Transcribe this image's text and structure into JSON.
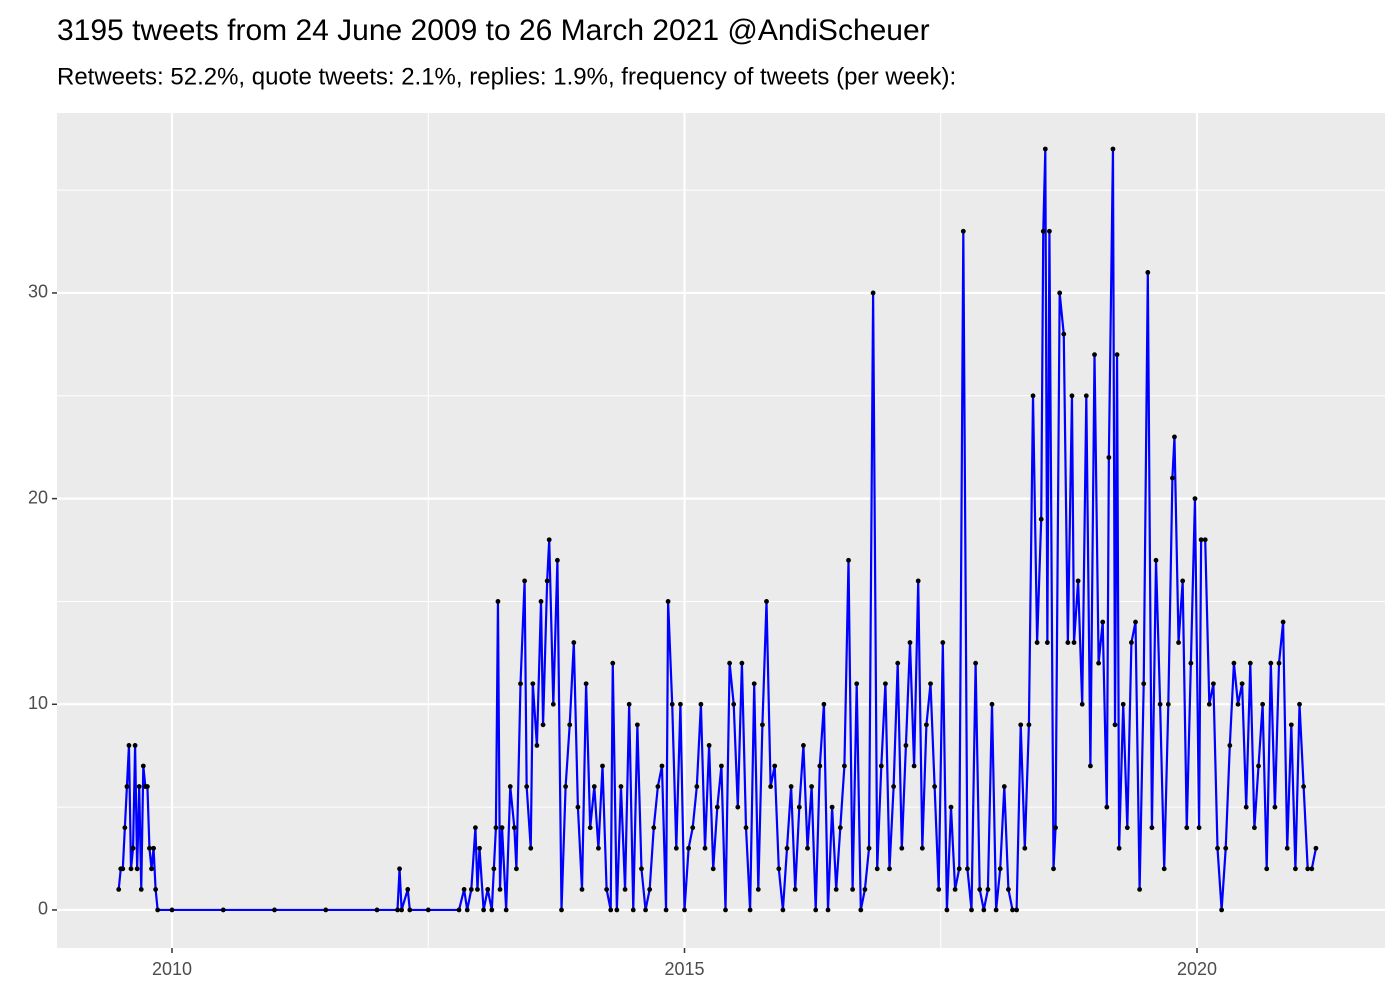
{
  "chart_data": {
    "type": "line",
    "title": "3195 tweets from 24 June 2009 to 26 March 2021 @AndiScheuer",
    "subtitle": "Retweets: 52.2%, quote tweets: 2.1%, replies: 1.9%, frequency of tweets (per week):",
    "x": [
      2009.48,
      2009.5,
      2009.52,
      2009.54,
      2009.56,
      2009.58,
      2009.6,
      2009.62,
      2009.64,
      2009.66,
      2009.68,
      2009.7,
      2009.72,
      2009.74,
      2009.76,
      2009.78,
      2009.8,
      2009.82,
      2009.84,
      2009.86,
      2010.0,
      2010.5,
      2011.0,
      2011.5,
      2012.0,
      2012.2,
      2012.22,
      2012.24,
      2012.3,
      2012.32,
      2012.5,
      2012.8,
      2012.85,
      2012.88,
      2012.92,
      2012.96,
      2012.98,
      2013.0,
      2013.04,
      2013.08,
      2013.12,
      2013.14,
      2013.16,
      2013.18,
      2013.2,
      2013.22,
      2013.26,
      2013.3,
      2013.34,
      2013.36,
      2013.4,
      2013.44,
      2013.46,
      2013.5,
      2013.52,
      2013.56,
      2013.6,
      2013.62,
      2013.66,
      2013.68,
      2013.72,
      2013.76,
      2013.8,
      2013.84,
      2013.88,
      2013.92,
      2013.96,
      2014.0,
      2014.04,
      2014.08,
      2014.12,
      2014.16,
      2014.2,
      2014.24,
      2014.28,
      2014.3,
      2014.34,
      2014.38,
      2014.42,
      2014.46,
      2014.5,
      2014.54,
      2014.58,
      2014.62,
      2014.66,
      2014.7,
      2014.74,
      2014.78,
      2014.82,
      2014.84,
      2014.88,
      2014.92,
      2014.96,
      2015.0,
      2015.04,
      2015.08,
      2015.12,
      2015.16,
      2015.2,
      2015.24,
      2015.28,
      2015.32,
      2015.36,
      2015.4,
      2015.44,
      2015.48,
      2015.52,
      2015.56,
      2015.6,
      2015.64,
      2015.68,
      2015.72,
      2015.76,
      2015.8,
      2015.84,
      2015.88,
      2015.92,
      2015.96,
      2016.0,
      2016.04,
      2016.08,
      2016.12,
      2016.16,
      2016.2,
      2016.24,
      2016.28,
      2016.32,
      2016.36,
      2016.4,
      2016.44,
      2016.48,
      2016.52,
      2016.56,
      2016.6,
      2016.64,
      2016.68,
      2016.72,
      2016.76,
      2016.8,
      2016.84,
      2016.88,
      2016.92,
      2016.96,
      2017.0,
      2017.04,
      2017.08,
      2017.12,
      2017.16,
      2017.2,
      2017.24,
      2017.28,
      2017.32,
      2017.36,
      2017.4,
      2017.44,
      2017.48,
      2017.52,
      2017.56,
      2017.6,
      2017.64,
      2017.68,
      2017.72,
      2017.76,
      2017.8,
      2017.84,
      2017.88,
      2017.92,
      2017.96,
      2018.0,
      2018.04,
      2018.08,
      2018.12,
      2018.16,
      2018.2,
      2018.24,
      2018.28,
      2018.32,
      2018.36,
      2018.4,
      2018.44,
      2018.48,
      2018.5,
      2018.52,
      2018.54,
      2018.56,
      2018.6,
      2018.62,
      2018.66,
      2018.7,
      2018.74,
      2018.78,
      2018.8,
      2018.84,
      2018.88,
      2018.92,
      2018.96,
      2019.0,
      2019.04,
      2019.08,
      2019.12,
      2019.14,
      2019.18,
      2019.2,
      2019.22,
      2019.24,
      2019.28,
      2019.32,
      2019.36,
      2019.4,
      2019.44,
      2019.48,
      2019.52,
      2019.56,
      2019.6,
      2019.64,
      2019.68,
      2019.72,
      2019.76,
      2019.78,
      2019.82,
      2019.86,
      2019.9,
      2019.94,
      2019.98,
      2020.02,
      2020.04,
      2020.08,
      2020.12,
      2020.16,
      2020.2,
      2020.24,
      2020.28,
      2020.32,
      2020.36,
      2020.4,
      2020.44,
      2020.48,
      2020.52,
      2020.56,
      2020.6,
      2020.64,
      2020.68,
      2020.72,
      2020.76,
      2020.8,
      2020.84,
      2020.88,
      2020.92,
      2020.96,
      2021.0,
      2021.04,
      2021.08,
      2021.12,
      2021.16
    ],
    "series": [
      {
        "color": "#0000ff",
        "values": [
          1,
          2,
          2,
          4,
          6,
          8,
          2,
          3,
          8,
          2,
          6,
          1,
          7,
          6,
          6,
          3,
          2,
          3,
          1,
          0,
          0,
          0,
          0,
          0,
          0,
          0,
          2,
          0,
          1,
          0,
          0,
          0,
          1,
          0,
          1,
          4,
          1,
          3,
          0,
          1,
          0,
          2,
          4,
          15,
          1,
          4,
          0,
          6,
          4,
          2,
          11,
          16,
          6,
          3,
          11,
          8,
          15,
          9,
          16,
          18,
          10,
          17,
          0,
          6,
          9,
          13,
          5,
          1,
          11,
          4,
          6,
          3,
          7,
          1,
          0,
          12,
          0,
          6,
          1,
          10,
          0,
          9,
          2,
          0,
          1,
          4,
          6,
          7,
          0,
          15,
          10,
          3,
          10,
          0,
          3,
          4,
          6,
          10,
          3,
          8,
          2,
          5,
          7,
          0,
          12,
          10,
          5,
          12,
          4,
          0,
          11,
          1,
          9,
          15,
          6,
          7,
          2,
          0,
          3,
          6,
          1,
          5,
          8,
          3,
          6,
          0,
          7,
          10,
          0,
          5,
          1,
          4,
          7,
          17,
          1,
          11,
          0,
          1,
          3,
          30,
          2,
          7,
          11,
          2,
          6,
          12,
          3,
          8,
          13,
          7,
          16,
          3,
          9,
          11,
          6,
          1,
          13,
          0,
          5,
          1,
          2,
          33,
          2,
          0,
          12,
          1,
          0,
          1,
          10,
          0,
          2,
          6,
          1,
          0,
          0,
          9,
          3,
          9,
          25,
          13,
          19,
          33,
          37,
          13,
          33,
          2,
          4,
          30,
          28,
          13,
          25,
          13,
          16,
          10,
          25,
          7,
          27,
          12,
          14,
          5,
          22,
          37,
          9,
          27,
          3,
          10,
          4,
          13,
          14,
          1,
          11,
          31,
          4,
          17,
          10,
          2,
          10,
          21,
          23,
          13,
          16,
          4,
          12,
          20,
          4,
          18,
          18,
          10,
          11,
          3,
          0,
          3,
          8,
          12,
          10,
          11,
          5,
          12,
          4,
          7,
          10,
          2,
          12,
          5,
          12,
          14,
          3,
          9,
          2,
          10,
          6,
          2,
          2,
          3
        ]
      }
    ],
    "point_color": "#000000",
    "xlim": [
      2008.878,
      2021.834
    ],
    "ylim": [
      -1.85,
      38.75
    ],
    "xticks": [
      2010,
      2015,
      2020
    ],
    "yticks": [
      0,
      10,
      20,
      30
    ],
    "grid": true
  }
}
